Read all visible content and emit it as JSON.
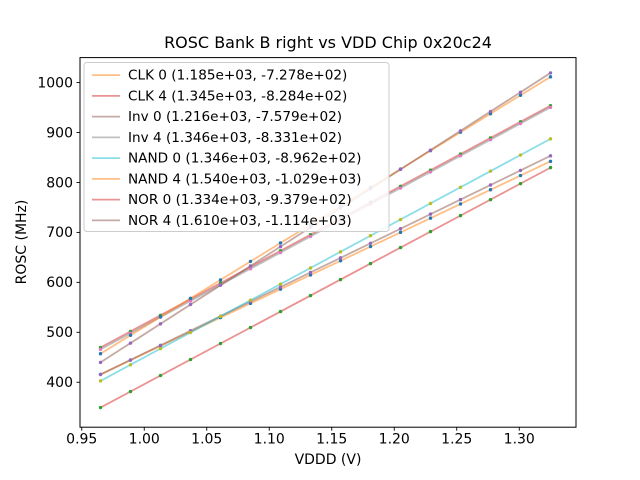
{
  "figure": {
    "background": "#ffffff"
  },
  "chart_data": {
    "type": "scatter",
    "title": "ROSC Bank B right vs VDD Chip 0x20c24",
    "xlabel": "VDDD (V)",
    "ylabel": "ROSC (MHz)",
    "xlim": [
      0.9486,
      1.3454
    ],
    "ylim": [
      310,
      1050
    ],
    "grid": false,
    "legend_position": "upper left",
    "xtick_values": [
      0.95,
      1.0,
      1.05,
      1.1,
      1.15,
      1.2,
      1.25,
      1.3
    ],
    "xtick_labels": [
      "0.95",
      "1.00",
      "1.05",
      "1.10",
      "1.15",
      "1.20",
      "1.25",
      "1.30"
    ],
    "ytick_values": [
      400,
      500,
      600,
      700,
      800,
      900,
      1000
    ],
    "ytick_labels": [
      "400",
      "500",
      "600",
      "700",
      "800",
      "900",
      "1000"
    ],
    "x": [
      0.965,
      0.989,
      1.013,
      1.037,
      1.061,
      1.085,
      1.109,
      1.133,
      1.157,
      1.181,
      1.205,
      1.229,
      1.253,
      1.277,
      1.301,
      1.325
    ],
    "series": [
      {
        "name": "CLK 0",
        "legend_label": "CLK 0 (1.185e+03, -7.278e+02)",
        "fit_slope": 1185.0,
        "fit_intercept": -727.8,
        "line_color": "rgba(255,127,14,0.5)",
        "marker_color": "#1f77b4",
        "y": [
          415.7,
          444.2,
          472.6,
          501.0,
          529.5,
          557.9,
          586.4,
          614.8,
          643.2,
          671.7,
          700.1,
          728.6,
          757.0,
          785.4,
          813.9,
          842.3
        ]
      },
      {
        "name": "CLK 4",
        "legend_label": "CLK 4 (1.345e+03, -8.284e+02)",
        "fit_slope": 1345.0,
        "fit_intercept": -828.4,
        "line_color": "rgba(214,39,40,0.5)",
        "marker_color": "#2ca02c",
        "y": [
          469.5,
          501.8,
          534.1,
          566.4,
          598.6,
          630.9,
          663.2,
          695.5,
          727.8,
          760.0,
          792.3,
          824.6,
          856.9,
          889.2,
          921.4,
          953.7
        ]
      },
      {
        "name": "Inv 0",
        "legend_label": "Inv 0 (1.216e+03, -7.579e+02)",
        "fit_slope": 1216.0,
        "fit_intercept": -757.9,
        "line_color": "rgba(140,86,75,0.5)",
        "marker_color": "#9467bd",
        "y": [
          415.5,
          444.7,
          473.9,
          503.1,
          532.3,
          561.5,
          590.6,
          619.8,
          649.0,
          678.2,
          707.4,
          736.6,
          765.7,
          794.9,
          824.1,
          853.3
        ]
      },
      {
        "name": "Inv 4",
        "legend_label": "Inv 4 (1.346e+03, -8.331e+02)",
        "fit_slope": 1346.0,
        "fit_intercept": -833.1,
        "line_color": "rgba(127,127,127,0.5)",
        "marker_color": "#e377c2",
        "y": [
          465.8,
          498.1,
          530.4,
          562.7,
          595.0,
          627.3,
          659.6,
          691.9,
          724.2,
          756.5,
          788.8,
          821.1,
          853.4,
          885.7,
          918.0,
          950.4
        ]
      },
      {
        "name": "NAND 0",
        "legend_label": "NAND 0 (1.346e+03, -8.962e+02)",
        "fit_slope": 1346.0,
        "fit_intercept": -896.2,
        "line_color": "rgba(23,190,207,0.5)",
        "marker_color": "#bcbd22",
        "y": [
          402.7,
          435.0,
          467.3,
          499.6,
          531.9,
          564.2,
          596.5,
          628.8,
          661.1,
          693.4,
          725.7,
          758.0,
          790.3,
          822.6,
          854.9,
          887.3
        ]
      },
      {
        "name": "NAND 4",
        "legend_label": "NAND 4 (1.540e+03, -1.029e+03)",
        "fit_slope": 1540.0,
        "fit_intercept": -1029.0,
        "line_color": "rgba(255,127,14,0.5)",
        "marker_color": "#1f77b4",
        "y": [
          457.1,
          494.1,
          531.0,
          568.0,
          604.9,
          641.9,
          678.9,
          715.8,
          752.8,
          789.7,
          826.7,
          863.7,
          900.6,
          937.6,
          974.5,
          1011.5
        ]
      },
      {
        "name": "NOR 0",
        "legend_label": "NOR 0 (1.334e+03, -9.379e+02)",
        "fit_slope": 1334.0,
        "fit_intercept": -937.9,
        "line_color": "rgba(214,39,40,0.5)",
        "marker_color": "#2ca02c",
        "y": [
          349.4,
          381.4,
          413.4,
          445.5,
          477.5,
          509.5,
          541.5,
          573.5,
          605.5,
          637.6,
          669.6,
          701.6,
          733.6,
          765.6,
          797.6,
          829.7
        ]
      },
      {
        "name": "NOR 4",
        "legend_label": "NOR 4 (1.610e+03, -1.114e+03)",
        "fit_slope": 1610.0,
        "fit_intercept": -1114.0,
        "line_color": "rgba(140,86,75,0.5)",
        "marker_color": "#9467bd",
        "y": [
          439.7,
          478.3,
          516.9,
          555.6,
          594.2,
          632.9,
          671.5,
          710.1,
          748.8,
          787.4,
          826.1,
          864.7,
          903.3,
          942.0,
          980.6,
          1019.3
        ]
      }
    ],
    "styles": {
      "axes_edge_color": "#000000",
      "legend_border_color": "#cccccc",
      "legend_background": "rgba(255,255,255,0.85)",
      "text_color": "#000000"
    }
  }
}
